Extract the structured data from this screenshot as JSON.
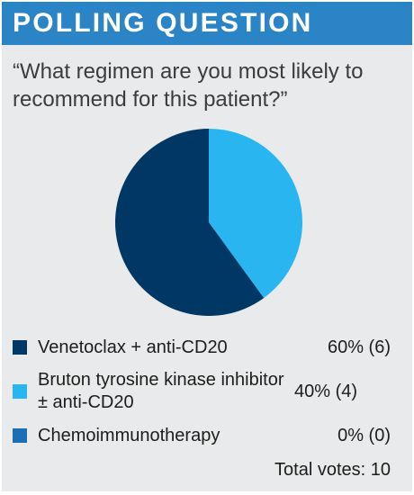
{
  "header": {
    "title": "POLLING QUESTION"
  },
  "question": "“What regimen are you most likely to recommend for this patient?”",
  "chart_data": {
    "type": "pie",
    "slices": [
      {
        "label": "Venetoclax + anti-CD20",
        "percent": 60,
        "votes": 6,
        "value_label": "60% (6)",
        "color": "#003865"
      },
      {
        "label": "Bruton tyrosine kinase inhibitor ± anti-CD20",
        "percent": 40,
        "votes": 4,
        "value_label": "40% (4)",
        "color": "#29b6f0"
      },
      {
        "label": "Chemoimmunotherapy",
        "percent": 0,
        "votes": 0,
        "value_label": "0% (0)",
        "color": "#1d6fb5"
      }
    ],
    "total_label": "Total votes: 10"
  }
}
